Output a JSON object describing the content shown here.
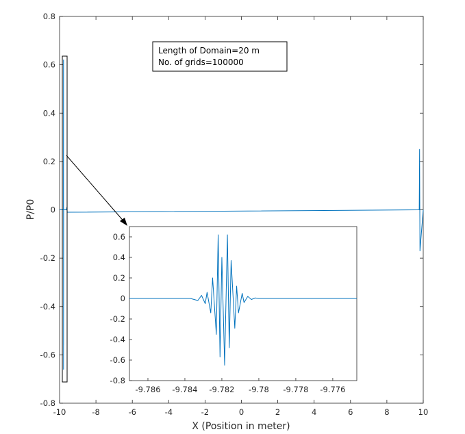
{
  "chart_data": [
    {
      "type": "line",
      "role": "main",
      "xlabel": "X (Position in meter)",
      "ylabel": "P/P0",
      "xlim": [
        -10,
        10
      ],
      "ylim": [
        -0.8,
        0.8
      ],
      "x_ticks": [
        -10,
        -8,
        -6,
        -4,
        -2,
        0,
        2,
        4,
        6,
        8,
        10
      ],
      "y_ticks": [
        -0.8,
        -0.6,
        -0.4,
        -0.2,
        0,
        0.2,
        0.4,
        0.6,
        0.8
      ],
      "x_tick_labels": [
        "-10",
        "-8",
        "-6",
        "-4",
        "-2",
        "0",
        "2",
        "4",
        "6",
        "8",
        "10"
      ],
      "y_tick_labels": [
        "-0.8",
        "-0.6",
        "-0.4",
        "-0.2",
        "0",
        "0.2",
        "0.4",
        "0.6",
        "0.8"
      ],
      "grid": false,
      "series_color": "#0072BD",
      "series": [
        {
          "x": [
            -10,
            -9.79,
            -9.784,
            -9.782,
            -9.781,
            -9.78,
            -9.776,
            -9.62,
            -9.6,
            -9.58,
            9.78,
            9.8,
            9.82,
            10
          ],
          "y": [
            0,
            0,
            0.62,
            -0.66,
            0.62,
            -0.56,
            0,
            0,
            0.01,
            -0.01,
            0,
            0.25,
            -0.17,
            0
          ]
        }
      ],
      "annotation": {
        "lines": [
          "Length of Domain=20 m",
          "No. of grids=100000"
        ]
      }
    },
    {
      "type": "line",
      "role": "inset",
      "xlim": [
        -9.787,
        -9.7747
      ],
      "ylim": [
        -0.8,
        0.7
      ],
      "x_ticks": [
        -9.786,
        -9.784,
        -9.782,
        -9.78,
        -9.778,
        -9.776
      ],
      "y_ticks": [
        -0.8,
        -0.6,
        -0.4,
        -0.2,
        0,
        0.2,
        0.4,
        0.6
      ],
      "x_tick_labels": [
        "-9.786",
        "-9.784",
        "-9.782",
        "-9.78",
        "-9.778",
        "-9.776"
      ],
      "y_tick_labels": [
        "-0.8",
        "-0.6",
        "-0.4",
        "-0.2",
        "0",
        "0.2",
        "0.4",
        "0.6"
      ],
      "series": [
        {
          "x": [
            -9.787,
            -9.7837,
            -9.7833,
            -9.7831,
            -9.7829,
            -9.7828,
            -9.7826,
            -9.7825,
            -9.7823,
            -9.7822,
            -9.7821,
            -9.782,
            -9.78185,
            -9.7817,
            -9.7816,
            -9.7815,
            -9.7813,
            -9.7812,
            -9.7811,
            -9.7809,
            -9.7808,
            -9.7806,
            -9.7804,
            -9.7802,
            -9.78,
            -9.7747
          ],
          "y": [
            0,
            0,
            -0.02,
            0.03,
            -0.05,
            0.06,
            -0.14,
            0.2,
            -0.35,
            0.62,
            -0.57,
            0.4,
            -0.65,
            0.62,
            -0.48,
            0.37,
            -0.29,
            0.12,
            -0.14,
            0.05,
            -0.04,
            0.02,
            -0.01,
            0.005,
            0,
            0
          ]
        }
      ]
    }
  ]
}
